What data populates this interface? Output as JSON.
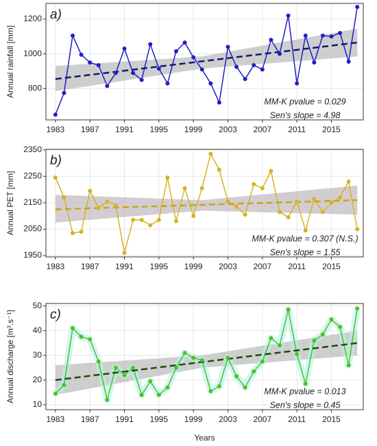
{
  "chart_data": [
    {
      "type": "line",
      "panel_label": "a)",
      "ylabel": "Annual rainfall [mm]",
      "x": [
        1983,
        1984,
        1985,
        1986,
        1987,
        1988,
        1989,
        1990,
        1991,
        1992,
        1993,
        1994,
        1995,
        1996,
        1997,
        1998,
        1999,
        2000,
        2001,
        2002,
        2003,
        2004,
        2005,
        2006,
        2007,
        2008,
        2009,
        2010,
        2011,
        2012,
        2013,
        2014,
        2015,
        2016,
        2017,
        2018
      ],
      "values": [
        650,
        775,
        1105,
        995,
        950,
        935,
        815,
        890,
        1030,
        890,
        850,
        1055,
        915,
        830,
        1015,
        1065,
        980,
        910,
        830,
        720,
        1040,
        925,
        855,
        935,
        910,
        1080,
        1000,
        1220,
        830,
        1105,
        950,
        1105,
        1100,
        1120,
        955,
        1270
      ],
      "color": "#1f1fc8",
      "trend": {
        "x": [
          1983,
          2018
        ],
        "values": [
          855,
          1065
        ],
        "color": "#14147a"
      },
      "band": {
        "x": [
          1983,
          2000,
          2018
        ],
        "lower": [
          785,
          915,
          985
        ],
        "upper": [
          930,
          985,
          1145
        ],
        "color": "#bdbdbd"
      },
      "annotations": [
        "MM-K pvalue = 0.029",
        "Sen's slope = 4.98"
      ],
      "xlim": [
        1981.9,
        2018.7
      ],
      "xticks": [
        1983,
        1987,
        1991,
        1995,
        1999,
        2003,
        2007,
        2011,
        2015
      ],
      "ylim": [
        620,
        1290
      ],
      "yticks": [
        800,
        1000,
        1200
      ],
      "grid": true
    },
    {
      "type": "line",
      "panel_label": "b)",
      "ylabel": "Annual PET [mm]",
      "x": [
        1983,
        1984,
        1985,
        1986,
        1987,
        1988,
        1989,
        1990,
        1991,
        1992,
        1993,
        1994,
        1995,
        1996,
        1997,
        1998,
        1999,
        2000,
        2001,
        2002,
        2003,
        2004,
        2005,
        2006,
        2007,
        2008,
        2009,
        2010,
        2011,
        2012,
        2013,
        2014,
        2015,
        2016,
        2017,
        2018
      ],
      "values": [
        2245,
        2170,
        2035,
        2040,
        2195,
        2130,
        2155,
        2140,
        1960,
        2085,
        2085,
        2065,
        2085,
        2245,
        2080,
        2205,
        2100,
        2205,
        2335,
        2275,
        2155,
        2135,
        2105,
        2220,
        2205,
        2270,
        2115,
        2095,
        2155,
        2045,
        2165,
        2115,
        2150,
        2170,
        2230,
        2050
      ],
      "color": "#d6b41e",
      "trend": {
        "x": [
          1983,
          2018
        ],
        "values": [
          2125,
          2160
        ],
        "color": "#c9a512"
      },
      "band": {
        "x": [
          1983,
          2000,
          2018
        ],
        "lower": [
          2075,
          2120,
          2105
        ],
        "upper": [
          2180,
          2160,
          2215
        ],
        "color": "#c4bcc4"
      },
      "annotations": [
        "MM-K pvalue = 0.307 (N.S.)",
        "Sen's slope = 1.55"
      ],
      "xlim": [
        1981.9,
        2018.7
      ],
      "xticks": [
        1983,
        1987,
        1991,
        1995,
        1999,
        2003,
        2007,
        2011,
        2015
      ],
      "ylim": [
        1945,
        2352
      ],
      "yticks": [
        1950,
        2050,
        2150,
        2250,
        2350
      ],
      "grid": true
    },
    {
      "type": "line",
      "panel_label": "c)",
      "ylabel": "Annual discharge [m³.s⁻¹]",
      "xlabel": "Years",
      "x": [
        1983,
        1984,
        1985,
        1986,
        1987,
        1988,
        1989,
        1990,
        1991,
        1992,
        1993,
        1994,
        1995,
        1996,
        1997,
        1998,
        1999,
        2000,
        2001,
        2002,
        2003,
        2004,
        2005,
        2006,
        2007,
        2008,
        2009,
        2010,
        2011,
        2012,
        2013,
        2014,
        2015,
        2016,
        2017,
        2018
      ],
      "values": [
        14.5,
        18,
        41,
        37.5,
        36.5,
        27.5,
        12,
        25,
        22,
        25,
        14,
        19.5,
        14,
        17,
        25,
        31,
        29,
        28,
        15.5,
        17.5,
        29,
        21.5,
        17,
        23.5,
        27.5,
        37,
        34,
        48.5,
        30.5,
        18.5,
        36,
        38.5,
        44.5,
        41.5,
        26,
        49
      ],
      "color": "#4cc224",
      "trend": {
        "x": [
          1983,
          2018
        ],
        "values": [
          20,
          35
        ],
        "color": "#1c4a0c"
      },
      "band": {
        "x": [
          1983,
          2000,
          2018
        ],
        "lower": [
          14,
          25,
          30
        ],
        "upper": [
          26,
          30,
          40
        ],
        "color": "#bdbdbd"
      },
      "annotations": [
        "MM-K pvalue = 0.013",
        "Sen's slope = 0.45"
      ],
      "xlim": [
        1981.9,
        2018.7
      ],
      "xticks": [
        1983,
        1987,
        1991,
        1995,
        1999,
        2003,
        2007,
        2011,
        2015
      ],
      "ylim": [
        8,
        51
      ],
      "yticks": [
        10,
        20,
        30,
        40,
        50
      ],
      "grid": true
    }
  ]
}
